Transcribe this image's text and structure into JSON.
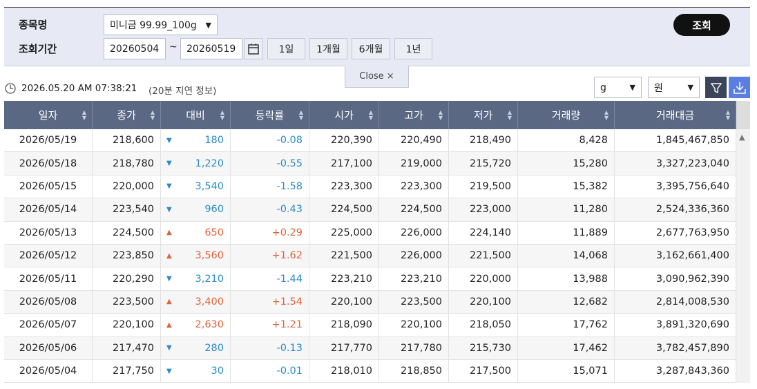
{
  "filter": {
    "item_label": "종목명",
    "period_label": "조회기간",
    "item_select": "미니금 99.99_100g",
    "date_from": "20260504",
    "date_sep": "~",
    "date_to": "20260519",
    "period_buttons": [
      "1일",
      "1개월",
      "6개월",
      "1년"
    ],
    "search_button": "조회",
    "close_tab": "Close ×"
  },
  "info": {
    "timestamp": "2026.05.20 AM 07:38:21",
    "delay_note": "(20분 지연 정보)",
    "unit_select": "g",
    "currency_select": "원"
  },
  "table": {
    "headers": [
      "일자",
      "종가",
      "대비",
      "등락률",
      "시가",
      "고가",
      "저가",
      "거래량",
      "거래대금"
    ],
    "rows": [
      [
        "2026/05/19",
        "218,600",
        "▼",
        "180",
        "-0.08",
        "220,390",
        "220,490",
        "218,490",
        "8,428",
        "1,845,467,850"
      ],
      [
        "2026/05/18",
        "218,780",
        "▼",
        "1,220",
        "-0.55",
        "217,100",
        "219,000",
        "215,720",
        "15,280",
        "3,327,223,040"
      ],
      [
        "2026/05/15",
        "220,000",
        "▼",
        "3,540",
        "-1.58",
        "223,300",
        "223,300",
        "219,500",
        "15,382",
        "3,395,756,640"
      ],
      [
        "2026/05/14",
        "223,540",
        "▼",
        "960",
        "-0.43",
        "224,500",
        "224,500",
        "223,000",
        "11,280",
        "2,524,336,360"
      ],
      [
        "2026/05/13",
        "224,500",
        "▲",
        "650",
        "+0.29",
        "225,000",
        "226,000",
        "224,140",
        "11,889",
        "2,677,763,950"
      ],
      [
        "2026/05/12",
        "223,850",
        "▲",
        "3,560",
        "+1.62",
        "221,500",
        "226,000",
        "221,500",
        "14,068",
        "3,162,661,400"
      ],
      [
        "2026/05/11",
        "220,290",
        "▼",
        "3,210",
        "-1.44",
        "223,210",
        "223,210",
        "220,000",
        "13,988",
        "3,090,962,390"
      ],
      [
        "2026/05/08",
        "223,500",
        "▲",
        "3,400",
        "+1.54",
        "220,100",
        "223,500",
        "220,100",
        "12,682",
        "2,814,008,530"
      ],
      [
        "2026/05/07",
        "220,100",
        "▲",
        "2,630",
        "+1.21",
        "218,090",
        "220,100",
        "218,050",
        "17,762",
        "3,891,320,690"
      ],
      [
        "2026/05/06",
        "217,470",
        "▼",
        "280",
        "-0.13",
        "217,770",
        "217,780",
        "215,730",
        "17,462",
        "3,782,457,890"
      ],
      [
        "2026/05/04",
        "217,750",
        "▼",
        "30",
        "-0.01",
        "218,010",
        "218,850",
        "217,500",
        "15,071",
        "3,287,843,360"
      ]
    ]
  }
}
